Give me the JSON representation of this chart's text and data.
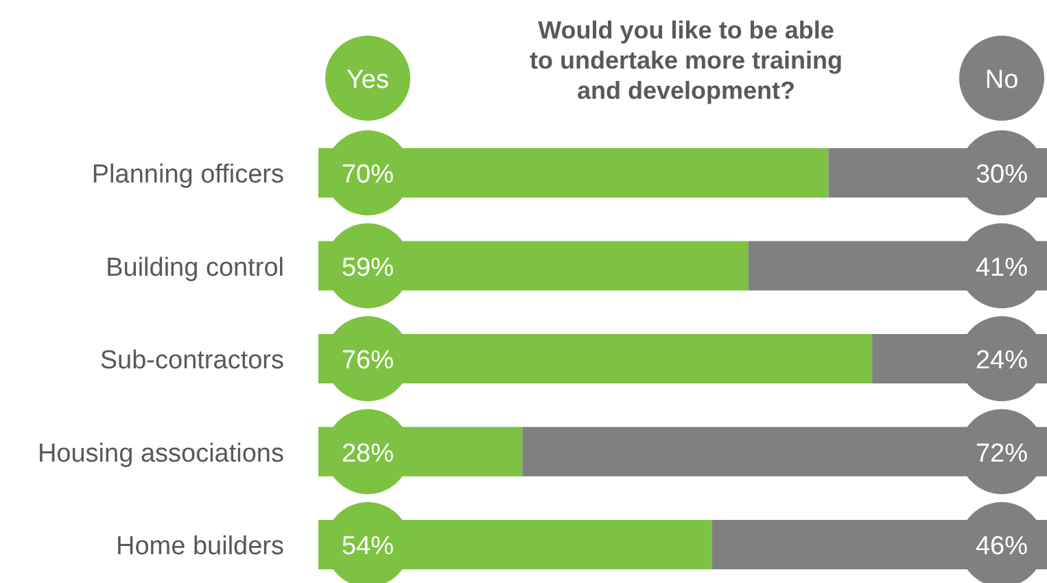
{
  "chart_data": {
    "type": "bar",
    "orientation": "horizontal",
    "stacked": true,
    "title": "Would you like to be able to undertake more training and development?",
    "categories": [
      "Planning officers",
      "Building control",
      "Sub-contractors",
      "Housing associations",
      "Home builders"
    ],
    "legend": "top",
    "series": [
      {
        "name": "Yes",
        "color": "#7dc242",
        "values": [
          70,
          59,
          76,
          28,
          54
        ],
        "value_labels": [
          "70%",
          "59%",
          "76%",
          "28%",
          "54%"
        ]
      },
      {
        "name": "No",
        "color": "#808080",
        "values": [
          30,
          41,
          24,
          72,
          46
        ],
        "value_labels": [
          "30%",
          "41%",
          "24%",
          "72%",
          "46%"
        ]
      }
    ]
  }
}
